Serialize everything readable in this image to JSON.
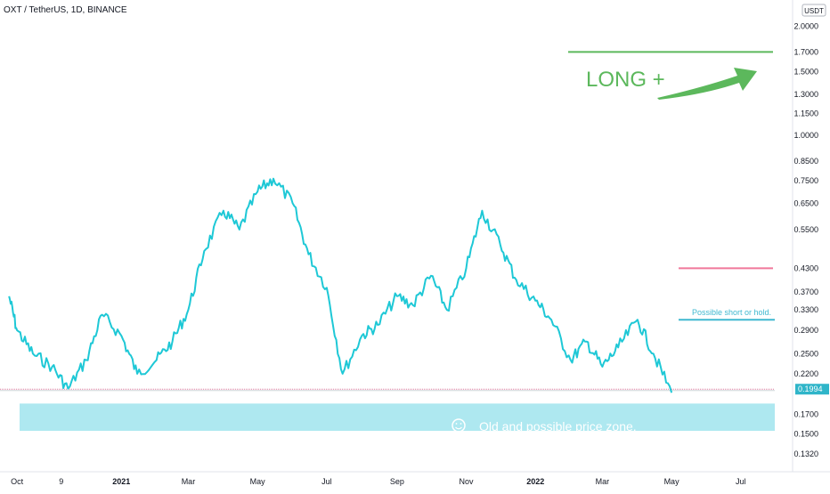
{
  "header": {
    "title": "OXT / TetherUS, 1D, BINANCE",
    "currency_badge": "USDT"
  },
  "annotations": {
    "long_label": "LONG +",
    "short_label": "Possible short or hold.",
    "zone_label": "Old and possible price zone.",
    "zone_icon": "smiley-icon",
    "current_price": "0.1994"
  },
  "colors": {
    "price_line": "#1ec8d6",
    "long": "#5cb85c",
    "short_line": "#f0789b",
    "short_text": "#3fb8d0",
    "zone_fill": "#aee8f0",
    "current_badge": "#2fb5c9",
    "support_line": "#e07ba0"
  },
  "chart_data": {
    "type": "line",
    "title": "OXT / TetherUS, 1D, BINANCE",
    "ylabel": "USDT",
    "y_scale": "log",
    "ylim": [
      0.12,
      2.3
    ],
    "y_ticks": [
      "2.0000",
      "1.7000",
      "1.5000",
      "1.3000",
      "1.1500",
      "1.0000",
      "0.8500",
      "0.7500",
      "0.6500",
      "0.5500",
      "0.4300",
      "0.3700",
      "0.3300",
      "0.2900",
      "0.2500",
      "0.2200",
      "0.1994",
      "0.1700",
      "0.1500",
      "0.1320"
    ],
    "x_ticks": [
      "Oct",
      "9",
      "2021",
      "Mar",
      "May",
      "Jul",
      "Sep",
      "Nov",
      "2022",
      "Mar",
      "May",
      "Jul"
    ],
    "x": [
      "2020-09-24",
      "2020-10-01",
      "2020-10-15",
      "2020-11-01",
      "2020-11-15",
      "2020-12-01",
      "2020-12-15",
      "2021-01-01",
      "2021-01-15",
      "2021-02-01",
      "2021-02-15",
      "2021-03-01",
      "2021-03-15",
      "2021-04-01",
      "2021-04-15",
      "2021-05-01",
      "2021-05-15",
      "2021-06-01",
      "2021-06-15",
      "2021-07-01",
      "2021-07-15",
      "2021-08-01",
      "2021-08-15",
      "2021-09-01",
      "2021-09-15",
      "2021-10-01",
      "2021-10-15",
      "2021-11-01",
      "2021-11-15",
      "2021-12-01",
      "2021-12-15",
      "2022-01-01",
      "2022-01-15",
      "2022-02-01",
      "2022-02-15",
      "2022-03-01",
      "2022-03-15",
      "2022-04-01",
      "2022-04-15",
      "2022-05-01"
    ],
    "series": [
      {
        "values": [
          0.36,
          0.29,
          0.25,
          0.23,
          0.2,
          0.24,
          0.32,
          0.28,
          0.22,
          0.24,
          0.27,
          0.33,
          0.48,
          0.62,
          0.55,
          0.7,
          0.76,
          0.65,
          0.47,
          0.38,
          0.22,
          0.28,
          0.3,
          0.36,
          0.34,
          0.41,
          0.33,
          0.43,
          0.62,
          0.5,
          0.4,
          0.35,
          0.31,
          0.24,
          0.27,
          0.23,
          0.26,
          0.31,
          0.25,
          0.195
        ]
      }
    ],
    "horizontal_lines": [
      {
        "label": "LONG +",
        "y": 1.7
      },
      {
        "label": "Possible short or hold.",
        "y": 0.31
      },
      {
        "y": 0.43
      },
      {
        "y": 0.1994
      }
    ],
    "zone": {
      "label": "Old and possible price zone.",
      "y_low": 0.153,
      "y_high": 0.182
    },
    "grid": false,
    "legend": "none"
  }
}
